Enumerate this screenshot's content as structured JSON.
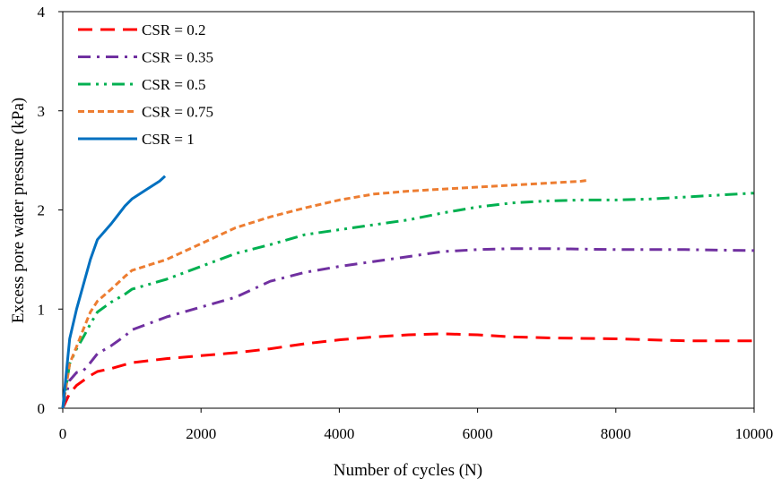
{
  "chart_data": {
    "type": "line",
    "xlabel": "Number of cycles (N)",
    "ylabel": "Excess pore water pressure (kPa)",
    "xlim": [
      0,
      10000
    ],
    "ylim": [
      0,
      4
    ],
    "x_ticks": [
      "0",
      "2000",
      "4000",
      "6000",
      "8000",
      "10000"
    ],
    "y_ticks": [
      "0",
      "1",
      "2",
      "3",
      "4"
    ],
    "grid": false,
    "legend_position": "top-left",
    "series": [
      {
        "name": "CSR = 0.2",
        "color": "#ff0000",
        "dash": "dash",
        "x": [
          0,
          100,
          200,
          300,
          400,
          500,
          700,
          1000,
          1500,
          2000,
          2500,
          3000,
          3500,
          4000,
          4500,
          5000,
          5500,
          6000,
          6500,
          7000,
          8000,
          9000,
          10000
        ],
        "y": [
          0,
          0.15,
          0.23,
          0.28,
          0.33,
          0.37,
          0.4,
          0.46,
          0.5,
          0.53,
          0.56,
          0.6,
          0.65,
          0.69,
          0.72,
          0.74,
          0.75,
          0.74,
          0.72,
          0.71,
          0.7,
          0.68,
          0.68
        ]
      },
      {
        "name": "CSR = 0.35",
        "color": "#7030a0",
        "dash": "dashdot",
        "x": [
          0,
          100,
          200,
          300,
          400,
          500,
          700,
          900,
          1000,
          1500,
          2000,
          2500,
          3000,
          3500,
          4000,
          4500,
          5000,
          5500,
          6000,
          6500,
          7000,
          8000,
          9000,
          10000
        ],
        "y": [
          0,
          0.28,
          0.36,
          0.38,
          0.46,
          0.55,
          0.63,
          0.73,
          0.79,
          0.92,
          1.02,
          1.12,
          1.28,
          1.37,
          1.43,
          1.48,
          1.53,
          1.58,
          1.6,
          1.61,
          1.61,
          1.6,
          1.6,
          1.59
        ]
      },
      {
        "name": "CSR = 0.5",
        "color": "#00b050",
        "dash": "dashdotdot",
        "x": [
          0,
          100,
          200,
          300,
          400,
          500,
          700,
          900,
          1000,
          1500,
          2000,
          2500,
          3000,
          3500,
          4000,
          4500,
          5000,
          5500,
          6000,
          6500,
          7000,
          7500,
          8000,
          8500,
          9000,
          9500,
          10000
        ],
        "y": [
          0,
          0.45,
          0.6,
          0.72,
          0.85,
          0.97,
          1.07,
          1.15,
          1.2,
          1.3,
          1.43,
          1.56,
          1.65,
          1.75,
          1.8,
          1.85,
          1.9,
          1.97,
          2.03,
          2.07,
          2.09,
          2.1,
          2.1,
          2.11,
          2.13,
          2.15,
          2.17
        ]
      },
      {
        "name": "CSR = 0.75",
        "color": "#ed7d31",
        "dash": "shortdash",
        "x": [
          0,
          100,
          200,
          300,
          400,
          500,
          700,
          900,
          1000,
          1500,
          2000,
          2500,
          3000,
          3500,
          4000,
          4500,
          5000,
          5500,
          6000,
          6500,
          7000,
          7500,
          7600
        ],
        "y": [
          0,
          0.45,
          0.62,
          0.8,
          0.97,
          1.08,
          1.2,
          1.33,
          1.39,
          1.5,
          1.66,
          1.82,
          1.93,
          2.02,
          2.1,
          2.16,
          2.19,
          2.21,
          2.23,
          2.25,
          2.27,
          2.29,
          2.3
        ]
      },
      {
        "name": "CSR = 1",
        "color": "#0070c0",
        "dash": "solid",
        "x": [
          0,
          50,
          100,
          200,
          300,
          400,
          500,
          700,
          900,
          1000,
          1200,
          1400,
          1480
        ],
        "y": [
          0,
          0.35,
          0.7,
          1.0,
          1.25,
          1.5,
          1.7,
          1.86,
          2.04,
          2.11,
          2.2,
          2.29,
          2.34
        ]
      }
    ]
  }
}
